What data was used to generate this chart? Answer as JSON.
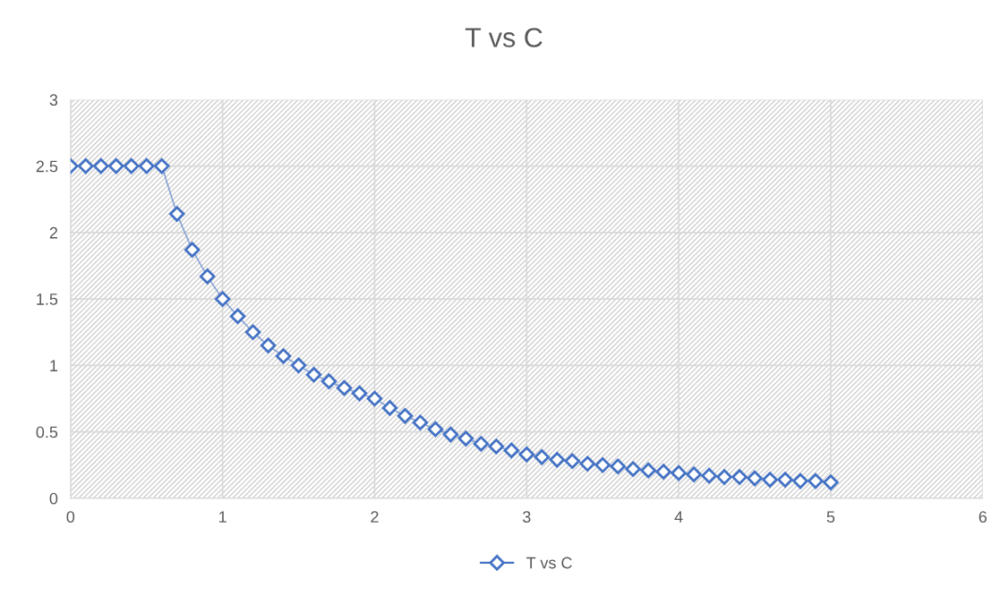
{
  "chart_data": {
    "type": "line",
    "title": "T vs C",
    "x": [
      0,
      0.1,
      0.2,
      0.3,
      0.4,
      0.5,
      0.6,
      0.7,
      0.8,
      0.9,
      1.0,
      1.1,
      1.2,
      1.3,
      1.4,
      1.5,
      1.6,
      1.7,
      1.8,
      1.9,
      2.0,
      2.1,
      2.2,
      2.3,
      2.4,
      2.5,
      2.6,
      2.7,
      2.8,
      2.9,
      3.0,
      3.1,
      3.2,
      3.3,
      3.4,
      3.5,
      3.6,
      3.7,
      3.8,
      3.9,
      4.0,
      4.1,
      4.2,
      4.3,
      4.4,
      4.5,
      4.6,
      4.7,
      4.8,
      4.9,
      5.0
    ],
    "series": [
      {
        "name": "T vs C",
        "color": "#4472c4",
        "values": [
          2.5,
          2.5,
          2.5,
          2.5,
          2.5,
          2.5,
          2.5,
          2.14,
          1.87,
          1.67,
          1.5,
          1.37,
          1.25,
          1.15,
          1.07,
          1.0,
          0.93,
          0.88,
          0.83,
          0.79,
          0.75,
          0.68,
          0.62,
          0.57,
          0.52,
          0.48,
          0.45,
          0.41,
          0.39,
          0.36,
          0.33,
          0.31,
          0.29,
          0.28,
          0.26,
          0.25,
          0.24,
          0.22,
          0.21,
          0.2,
          0.19,
          0.18,
          0.17,
          0.16,
          0.16,
          0.15,
          0.14,
          0.14,
          0.13,
          0.13,
          0.12
        ]
      }
    ],
    "xlim": [
      0,
      6
    ],
    "xticks": [
      0,
      1,
      2,
      3,
      4,
      5,
      6
    ],
    "ylim": [
      0,
      3
    ],
    "yticks": [
      0,
      0.5,
      1,
      1.5,
      2,
      2.5,
      3
    ],
    "grid": true,
    "legend": "bottom",
    "marker": "diamond",
    "line_style": "solid"
  }
}
